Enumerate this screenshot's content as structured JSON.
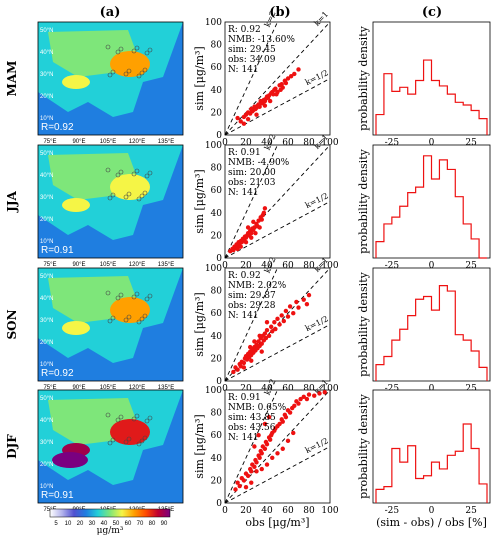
{
  "column_labels": [
    "(a)",
    "(b)",
    "(c)"
  ],
  "colors": {
    "accent": "#ee1111",
    "line": "#000000",
    "colorbar": [
      "#ffffff",
      "#c8c8f0",
      "#9b9be6",
      "#6666d8",
      "#1f3fd0",
      "#1f88e0",
      "#1fc8e0",
      "#38e6b0",
      "#7ee67a",
      "#c8f05a",
      "#f5f546",
      "#ffb000",
      "#ff6a00",
      "#e01a1a",
      "#a0004a",
      "#7a0080"
    ]
  },
  "map": {
    "lon_ticks": [
      "75°E",
      "90°E",
      "105°E",
      "120°E",
      "135°E"
    ],
    "lat_ticks": [
      "50°N",
      "40°N",
      "30°N",
      "20°N",
      "10°N"
    ],
    "colorbar_ticks": [
      "5",
      "10",
      "20",
      "30",
      "40",
      "50",
      "60",
      "70",
      "80",
      "90"
    ],
    "colorbar_unit": "μg/m³"
  },
  "rows": [
    {
      "season": "MAM",
      "r_label": "R=0.92",
      "stats": [
        "R: 0.92",
        "NMB: -13.60%",
        "sim: 29.45",
        "obs: 34.09",
        "N: 141"
      ]
    },
    {
      "season": "JJA",
      "r_label": "R=0.91",
      "stats": [
        "R: 0.91",
        "NMB: -4.90%",
        "sim: 20.00",
        "obs: 21.03",
        "N: 141"
      ]
    },
    {
      "season": "SON",
      "r_label": "R=0.92",
      "stats": [
        "R: 0.92",
        "NMB: 2.02%",
        "sim: 29.87",
        "obs: 29.28",
        "N: 141"
      ]
    },
    {
      "season": "DJF",
      "r_label": "R=0.91",
      "stats": [
        "R: 0.91",
        "NMB: 0.65%",
        "sim: 43.85",
        "obs: 43.56",
        "N: 141"
      ]
    }
  ],
  "chart_data": [
    {
      "type": "scatter",
      "panel": "(b)",
      "xlabel": "obs [μg/m³]",
      "ylabel": "sim [μg/m³]",
      "xlim": [
        0,
        100
      ],
      "ylim": [
        0,
        100
      ],
      "x_ticks": [
        "0",
        "20",
        "40",
        "60",
        "80",
        "100"
      ],
      "y_ticks": [
        "0",
        "20",
        "40",
        "60",
        "80",
        "100"
      ],
      "reference_lines": [
        {
          "label": "k=2",
          "slope": 2
        },
        {
          "label": "k=1",
          "slope": 1
        },
        {
          "label": "k=1/2",
          "slope": 0.5
        }
      ],
      "panels": [
        {
          "season": "MAM",
          "points": [
            [
              12,
              15
            ],
            [
              15,
              12
            ],
            [
              18,
              16
            ],
            [
              20,
              18
            ],
            [
              22,
              20
            ],
            [
              24,
              19
            ],
            [
              25,
              23
            ],
            [
              26,
              21
            ],
            [
              27,
              22
            ],
            [
              28,
              25
            ],
            [
              29,
              23
            ],
            [
              30,
              24
            ],
            [
              31,
              26
            ],
            [
              32,
              27
            ],
            [
              33,
              25
            ],
            [
              34,
              30
            ],
            [
              35,
              28
            ],
            [
              36,
              29
            ],
            [
              37,
              31
            ],
            [
              38,
              30
            ],
            [
              39,
              32
            ],
            [
              40,
              34
            ],
            [
              41,
              33
            ],
            [
              42,
              35
            ],
            [
              43,
              30
            ],
            [
              44,
              37
            ],
            [
              45,
              38
            ],
            [
              46,
              36
            ],
            [
              47,
              40
            ],
            [
              48,
              41
            ],
            [
              50,
              38
            ],
            [
              52,
              44
            ],
            [
              54,
              45
            ],
            [
              55,
              42
            ],
            [
              57,
              48
            ],
            [
              60,
              50
            ],
            [
              63,
              52
            ],
            [
              66,
              54
            ],
            [
              70,
              58
            ],
            [
              58,
              46
            ],
            [
              38,
              26
            ],
            [
              30,
              18
            ],
            [
              22,
              14
            ],
            [
              18,
              10
            ],
            [
              49,
              36
            ],
            [
              53,
              40
            ]
          ]
        },
        {
          "season": "JJA",
          "points": [
            [
              5,
              6
            ],
            [
              7,
              8
            ],
            [
              8,
              7
            ],
            [
              9,
              10
            ],
            [
              10,
              9
            ],
            [
              11,
              12
            ],
            [
              12,
              11
            ],
            [
              13,
              14
            ],
            [
              14,
              13
            ],
            [
              15,
              15
            ],
            [
              16,
              14
            ],
            [
              17,
              17
            ],
            [
              18,
              16
            ],
            [
              19,
              19
            ],
            [
              20,
              18
            ],
            [
              21,
              20
            ],
            [
              22,
              22
            ],
            [
              23,
              20
            ],
            [
              24,
              24
            ],
            [
              25,
              22
            ],
            [
              26,
              26
            ],
            [
              27,
              25
            ],
            [
              28,
              27
            ],
            [
              30,
              30
            ],
            [
              31,
              28
            ],
            [
              32,
              33
            ],
            [
              34,
              36
            ],
            [
              35,
              34
            ],
            [
              36,
              38
            ],
            [
              37,
              40
            ],
            [
              38,
              44
            ],
            [
              29,
              22
            ],
            [
              20,
              14
            ],
            [
              15,
              10
            ],
            [
              12,
              8
            ],
            [
              25,
              18
            ],
            [
              33,
              27
            ],
            [
              27,
              32
            ],
            [
              22,
              27
            ]
          ]
        },
        {
          "season": "SON",
          "points": [
            [
              8,
              8
            ],
            [
              10,
              12
            ],
            [
              12,
              10
            ],
            [
              14,
              15
            ],
            [
              15,
              13
            ],
            [
              16,
              17
            ],
            [
              18,
              16
            ],
            [
              19,
              20
            ],
            [
              20,
              22
            ],
            [
              21,
              19
            ],
            [
              22,
              24
            ],
            [
              23,
              21
            ],
            [
              24,
              26
            ],
            [
              25,
              23
            ],
            [
              26,
              28
            ],
            [
              27,
              25
            ],
            [
              28,
              30
            ],
            [
              29,
              27
            ],
            [
              30,
              32
            ],
            [
              31,
              29
            ],
            [
              32,
              35
            ],
            [
              33,
              31
            ],
            [
              34,
              38
            ],
            [
              35,
              33
            ],
            [
              36,
              40
            ],
            [
              37,
              36
            ],
            [
              38,
              42
            ],
            [
              39,
              38
            ],
            [
              40,
              45
            ],
            [
              42,
              40
            ],
            [
              44,
              48
            ],
            [
              45,
              44
            ],
            [
              47,
              52
            ],
            [
              48,
              46
            ],
            [
              50,
              55
            ],
            [
              52,
              50
            ],
            [
              54,
              58
            ],
            [
              56,
              53
            ],
            [
              58,
              62
            ],
            [
              60,
              57
            ],
            [
              62,
              66
            ],
            [
              65,
              60
            ],
            [
              68,
              70
            ],
            [
              70,
              65
            ],
            [
              75,
              72
            ],
            [
              78,
              68
            ],
            [
              80,
              76
            ],
            [
              24,
              30
            ],
            [
              28,
              35
            ],
            [
              33,
              40
            ],
            [
              40,
              52
            ],
            [
              18,
              12
            ],
            [
              25,
              18
            ],
            [
              35,
              26
            ]
          ]
        },
        {
          "season": "DJF",
          "points": [
            [
              10,
              12
            ],
            [
              12,
              18
            ],
            [
              14,
              15
            ],
            [
              16,
              22
            ],
            [
              18,
              20
            ],
            [
              20,
              26
            ],
            [
              22,
              24
            ],
            [
              24,
              30
            ],
            [
              25,
              28
            ],
            [
              26,
              34
            ],
            [
              28,
              32
            ],
            [
              29,
              38
            ],
            [
              30,
              36
            ],
            [
              32,
              42
            ],
            [
              33,
              40
            ],
            [
              34,
              46
            ],
            [
              35,
              44
            ],
            [
              36,
              50
            ],
            [
              38,
              48
            ],
            [
              39,
              54
            ],
            [
              40,
              52
            ],
            [
              42,
              58
            ],
            [
              43,
              56
            ],
            [
              44,
              60
            ],
            [
              45,
              62
            ],
            [
              47,
              64
            ],
            [
              48,
              66
            ],
            [
              50,
              68
            ],
            [
              52,
              70
            ],
            [
              54,
              74
            ],
            [
              55,
              72
            ],
            [
              57,
              78
            ],
            [
              58,
              76
            ],
            [
              60,
              82
            ],
            [
              62,
              80
            ],
            [
              64,
              84
            ],
            [
              66,
              86
            ],
            [
              68,
              90
            ],
            [
              70,
              88
            ],
            [
              72,
              92
            ],
            [
              75,
              94
            ],
            [
              78,
              92
            ],
            [
              80,
              96
            ],
            [
              85,
              95
            ],
            [
              90,
              97
            ],
            [
              95,
              98
            ],
            [
              30,
              28
            ],
            [
              35,
              30
            ],
            [
              40,
              34
            ],
            [
              45,
              40
            ],
            [
              50,
              44
            ],
            [
              55,
              48
            ],
            [
              60,
              55
            ],
            [
              65,
              62
            ],
            [
              28,
              50
            ],
            [
              32,
              60
            ],
            [
              38,
              70
            ],
            [
              42,
              76
            ],
            [
              20,
              14
            ],
            [
              25,
              18
            ]
          ]
        }
      ]
    },
    {
      "type": "histogram",
      "panel": "(c)",
      "xlabel": "(sim - obs) / obs [%]",
      "ylabel": "probability density",
      "x_ticks": [
        "-25",
        "0",
        "25"
      ],
      "panels": [
        {
          "season": "MAM",
          "bin_edges": [
            -35,
            -30,
            -25,
            -20,
            -15,
            -10,
            -5,
            0,
            5,
            10,
            15,
            20,
            25,
            30,
            35
          ],
          "density": [
            0.015,
            0.045,
            0.032,
            0.035,
            0.03,
            0.04,
            0.055,
            0.04,
            0.036,
            0.03,
            0.024,
            0.022,
            0.018,
            0.012
          ]
        },
        {
          "season": "JJA",
          "bin_edges": [
            -35,
            -30,
            -25,
            -20,
            -15,
            -10,
            -5,
            0,
            5,
            10,
            15,
            20,
            25,
            30,
            35
          ],
          "density": [
            0.012,
            0.025,
            0.03,
            0.038,
            0.048,
            0.052,
            0.075,
            0.058,
            0.072,
            0.065,
            0.045,
            0.025,
            0.014,
            0.0
          ]
        },
        {
          "season": "SON",
          "bin_edges": [
            -35,
            -30,
            -25,
            -20,
            -15,
            -10,
            -5,
            0,
            5,
            10,
            15,
            20,
            25,
            30,
            35
          ],
          "density": [
            0.012,
            0.018,
            0.03,
            0.038,
            0.048,
            0.06,
            0.062,
            0.052,
            0.07,
            0.066,
            0.034,
            0.03,
            0.022,
            0.01
          ]
        },
        {
          "season": "DJF",
          "bin_edges": [
            -35,
            -30,
            -25,
            -20,
            -15,
            -10,
            -5,
            0,
            5,
            10,
            15,
            20,
            25,
            30,
            35
          ],
          "density": [
            0.01,
            0.012,
            0.04,
            0.03,
            0.042,
            0.018,
            0.02,
            0.03,
            0.025,
            0.035,
            0.038,
            0.058,
            0.04,
            0.014
          ]
        }
      ]
    }
  ]
}
